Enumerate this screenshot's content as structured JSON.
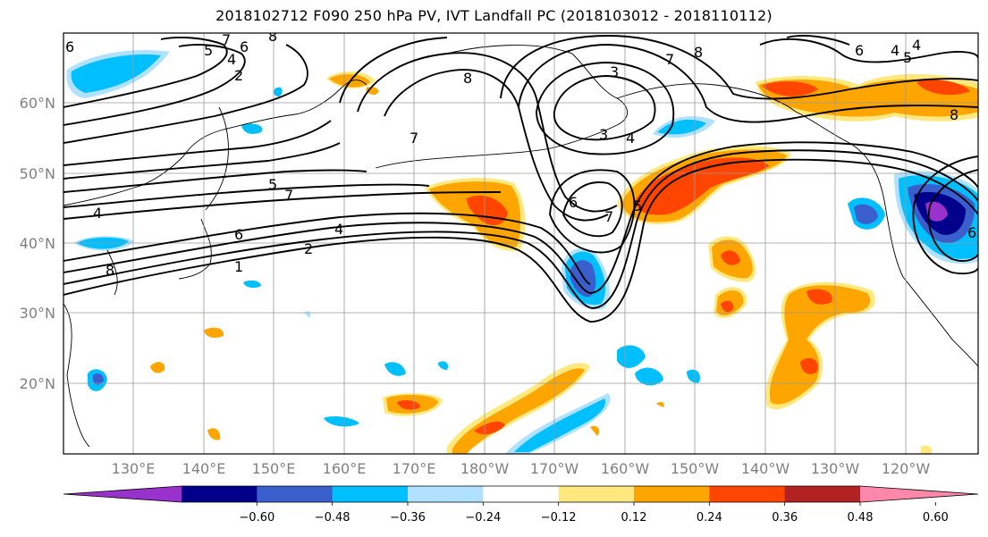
{
  "title": "2018102712 F090 250 hPa PV, IVT Landfall PC (2018103012 - 2018110112)",
  "lat_labels": [
    "60°N",
    "50°N",
    "40°N",
    "30°N",
    "20°N"
  ],
  "lon_labels": [
    "130°E",
    "140°E",
    "150°E",
    "160°E",
    "170°E",
    "180°W",
    "170°W",
    "160°W",
    "150°W",
    "140°W",
    "130°W",
    "120°W"
  ],
  "colorbar": {
    "ticks": [
      "−0.60",
      "−0.48",
      "−0.36",
      "−0.24",
      "−0.12",
      "0.12",
      "0.24",
      "0.36",
      "0.48",
      "0.60"
    ],
    "colors": [
      "#9932CC",
      "#00008B",
      "#3A5FCD",
      "#00BFFF",
      "#B0E2FF",
      "#FFFFFF",
      "#FFE97F",
      "#FFA500",
      "#FF4500",
      "#B22222",
      "#FF88AA"
    ]
  },
  "contour_labels": [
    "5",
    "7",
    "6",
    "8",
    "4",
    "2",
    "8",
    "7",
    "3",
    "3",
    "4",
    "8",
    "4",
    "5",
    "7",
    "4",
    "6",
    "2",
    "1",
    "8",
    "6",
    "7",
    "5",
    "7",
    "8",
    "6",
    "6",
    "4",
    "5",
    "4",
    "6"
  ],
  "colors": {
    "purple": "#9932CC",
    "navy": "#00008B",
    "blue": "#3A5FCD",
    "deepsky": "#00BFFF",
    "lightsky": "#B0E2FF",
    "yellow": "#FFE97F",
    "orange": "#FFA500",
    "orangered": "#FF4500",
    "firebrick": "#B22222",
    "grid": "#999999",
    "contour": "#000000"
  }
}
